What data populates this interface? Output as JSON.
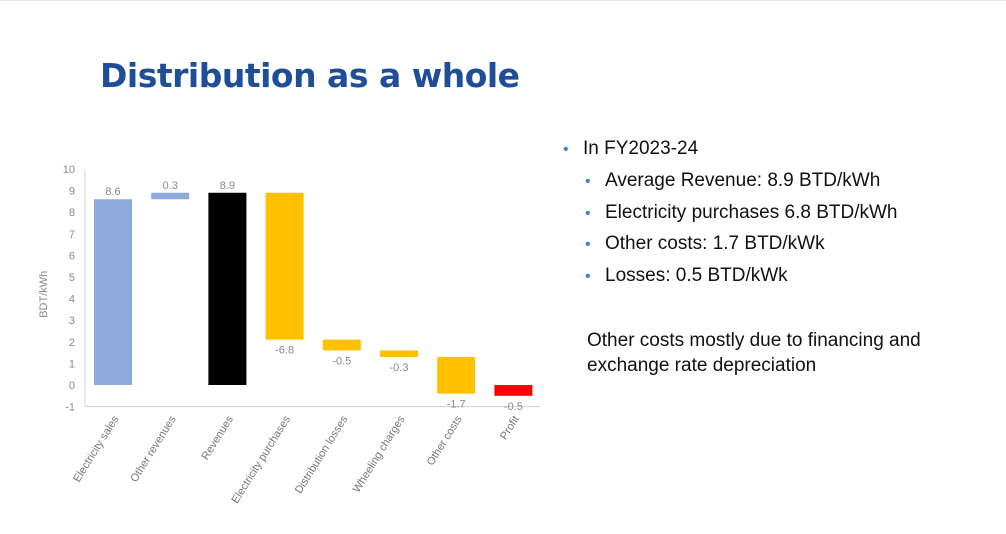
{
  "slide": {
    "title": "Distribution as a whole",
    "bullets": [
      {
        "text": "In FY2023-24",
        "level": 1
      },
      {
        "text": "Average Revenue: 8.9 BTD/kWh",
        "level": 2
      },
      {
        "text": "Electricity purchases 6.8 BTD/kWh",
        "level": 2
      },
      {
        "text": "Other costs: 1.7 BTD/kWk",
        "level": 2
      },
      {
        "text": "Losses: 0.5 BTD/kWk",
        "level": 2
      }
    ],
    "note": "Other costs mostly due to financing and exchange rate depreciation"
  },
  "chart_data": {
    "type": "bar",
    "subtype": "waterfall",
    "title": "",
    "ylabel": "BDT/kWh",
    "ylim": [
      -1,
      10
    ],
    "yticks": [
      -1,
      0,
      1,
      2,
      3,
      4,
      5,
      6,
      7,
      8,
      9,
      10
    ],
    "grid": false,
    "categories": [
      "Electricity sales",
      "Other revenues",
      "Revenues",
      "Electricity purchases",
      "Distribution losses",
      "Wheeling charges",
      "Other costs",
      "Profit"
    ],
    "bars": [
      {
        "label": "8.6",
        "start": 0,
        "end": 8.6,
        "color": "#8faadc"
      },
      {
        "label": "0.3",
        "start": 8.6,
        "end": 8.9,
        "color": "#8faadc"
      },
      {
        "label": "8.9",
        "start": 0,
        "end": 8.9,
        "color": "#000000"
      },
      {
        "label": "-6.8",
        "start": 8.9,
        "end": 2.1,
        "color": "#ffc000"
      },
      {
        "label": "-0.5",
        "start": 2.1,
        "end": 1.6,
        "color": "#ffc000"
      },
      {
        "label": "-0.3",
        "start": 1.6,
        "end": 1.3,
        "color": "#ffc000"
      },
      {
        "label": "-1.7",
        "start": 1.3,
        "end": -0.4,
        "color": "#ffc000"
      },
      {
        "label": "-0.5",
        "start": 0.0,
        "end": -0.5,
        "color": "#ff0000"
      }
    ]
  }
}
